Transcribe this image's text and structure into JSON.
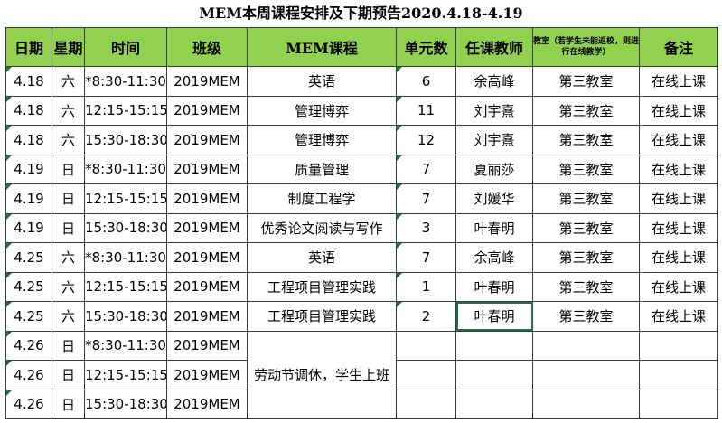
{
  "title": "MEM本周课程安排及下期预告2020.4.18-4.19",
  "headers": [
    "日期",
    "星期",
    "时间",
    "班级",
    "MEM课程",
    "单元数",
    "任课教师",
    "教室（若学生未能返校，则进行在线教学）",
    "备注"
  ],
  "rows": [
    {
      "date": "4.18",
      "weekday": "六",
      "time": "*8:30-11:30",
      "class": "2019MEM",
      "course": "英语",
      "units": "6",
      "teacher": "余高峰",
      "room": "第三教室",
      "note": "在线上课"
    },
    {
      "date": "4.18",
      "weekday": "六",
      "time": "12:15-15:15",
      "class": "2019MEM",
      "course": "管理博弈",
      "units": "11",
      "teacher": "刘宇熹",
      "room": "第三教室",
      "note": "在线上课"
    },
    {
      "date": "4.18",
      "weekday": "六",
      "time": "15:30-18:30",
      "class": "2019MEM",
      "course": "管理博弈",
      "units": "12",
      "teacher": "刘宇熹",
      "room": "第三教室",
      "note": "在线上课"
    },
    {
      "date": "4.19",
      "weekday": "日",
      "time": "*8:30-11:30",
      "class": "2019MEM",
      "course": "质量管理",
      "units": "7",
      "teacher": "夏丽莎",
      "room": "第三教室",
      "note": "在线上课"
    },
    {
      "date": "4.19",
      "weekday": "日",
      "time": "12:15-15:15",
      "class": "2019MEM",
      "course": "制度工程学",
      "units": "7",
      "teacher": "刘媛华",
      "room": "第三教室",
      "note": "在线上课"
    },
    {
      "date": "4.19",
      "weekday": "日",
      "time": "15:30-18:30",
      "class": "2019MEM",
      "course": "优秀论文阅读与写作",
      "units": "3",
      "teacher": "叶春明",
      "room": "第三教室",
      "note": "在线上课"
    },
    {
      "date": "4.25",
      "weekday": "六",
      "time": "*8:30-11:30",
      "class": "2019MEM",
      "course": "英语",
      "units": "7",
      "teacher": "余高峰",
      "room": "第三教室",
      "note": "在线上课"
    },
    {
      "date": "4.25",
      "weekday": "六",
      "time": "12:15-15:15",
      "class": "2019MEM",
      "course": "工程项目管理实践",
      "units": "1",
      "teacher": "叶春明",
      "room": "第三教室",
      "note": "在线上课"
    },
    {
      "date": "4.25",
      "weekday": "六",
      "time": "15:30-18:30",
      "class": "2019MEM",
      "course": "工程项目管理实践",
      "units": "2",
      "teacher": "叶春明",
      "room": "第三教室",
      "note": "在线上课"
    }
  ],
  "holiday_rows": [
    {
      "date": "4.26",
      "weekday": "日",
      "time": "*8:30-11:30",
      "class": "2019MEM"
    },
    {
      "date": "4.26",
      "weekday": "日",
      "time": "12:15-15:15",
      "class": "2019MEM"
    },
    {
      "date": "4.26",
      "weekday": "日",
      "time": "15:30-18:30",
      "class": "2019MEM"
    }
  ],
  "holiday_note": "劳动节调休，学生上班",
  "colors": {
    "header_bg": "#92d050",
    "cell_marker": "#1b7a3a",
    "selection": "#217346"
  }
}
